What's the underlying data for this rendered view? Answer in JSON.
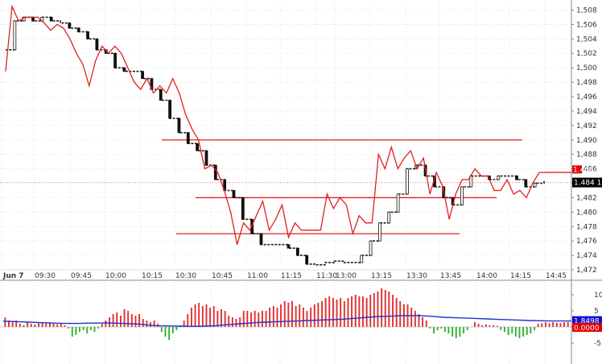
{
  "chart_data": [
    {
      "type": "candlestick-line",
      "price_axis": {
        "ylim": [
          1.471,
          1.5085
        ],
        "ticks": [
          1.472,
          1.474,
          1.476,
          1.478,
          1.48,
          1.482,
          1.484,
          1.486,
          1.488,
          1.49,
          1.492,
          1.494,
          1.496,
          1.498,
          1.5,
          1.502,
          1.504,
          1.506,
          1.508
        ],
        "tick_labels": [
          "1,472",
          "1,474",
          "1,476",
          "1,478",
          "1,480",
          "1,482",
          "1,484",
          "1,486",
          "1,488",
          "1,490",
          "1,492",
          "1,494",
          "1,496",
          "1,498",
          "1,500",
          "1,502",
          "1,504",
          "1,506",
          "1,508"
        ]
      },
      "x_labels": [
        "Jun 7",
        "09:30",
        "09:45",
        "10:00",
        "10:15",
        "10:30",
        "10:45",
        "11:00",
        "11:15",
        "11:30",
        "13:00",
        "13:15",
        "13:30",
        "13:45",
        "14:00",
        "14:15",
        "14:45"
      ],
      "horizontal_levels": [
        {
          "price": 1.49,
          "from": "10:15",
          "to": "14:15"
        },
        {
          "price": 1.482,
          "from": "10:30",
          "to": "14:00"
        },
        {
          "price": 1.477,
          "from": "10:30",
          "to": "13:45"
        }
      ],
      "last_price_label": "1.484 1",
      "current_marker_label": "1.486",
      "red_line": [
        1.4995,
        1.5085,
        1.5065,
        1.507,
        1.507,
        1.507,
        1.5062,
        1.5052,
        1.506,
        1.5055,
        1.504,
        1.502,
        1.5005,
        1.4975,
        1.501,
        1.503,
        1.502,
        1.503,
        1.502,
        1.5,
        1.498,
        1.497,
        1.4985,
        1.4965,
        1.4975,
        1.4965,
        1.4985,
        1.4965,
        1.4935,
        1.4915,
        1.49,
        1.486,
        1.4865,
        1.4855,
        1.483,
        1.48,
        1.4755,
        1.4785,
        1.4775,
        1.4795,
        1.4815,
        1.4775,
        1.479,
        1.481,
        1.4765,
        1.4785,
        1.4775,
        1.4775,
        1.4775,
        1.4775,
        1.4825,
        1.4805,
        1.482,
        1.481,
        1.477,
        1.4795,
        1.4785,
        1.4785,
        1.488,
        1.486,
        1.489,
        1.486,
        1.4875,
        1.4885,
        1.486,
        1.4875,
        1.4825,
        1.4855,
        1.4835,
        1.479,
        1.4825,
        1.4845,
        1.4845,
        1.486,
        1.485,
        1.485,
        1.483,
        1.483,
        1.4845,
        1.4825,
        1.483,
        1.482,
        1.484,
        1.4855,
        1.4855
      ],
      "black_line": [
        1.5025,
        1.5065,
        1.507,
        1.5065,
        1.507,
        1.5065,
        1.5062,
        1.5055,
        1.505,
        1.504,
        1.5025,
        1.502,
        1.5,
        1.4995,
        1.4995,
        1.4985,
        1.497,
        1.4955,
        1.493,
        1.491,
        1.4895,
        1.4885,
        1.4865,
        1.4845,
        1.483,
        1.482,
        1.479,
        1.477,
        1.4755,
        1.4755,
        1.4755,
        1.475,
        1.474,
        1.4728,
        1.4727,
        1.473,
        1.4732,
        1.473,
        1.473,
        1.474,
        1.476,
        1.4785,
        1.48,
        1.4825,
        1.486,
        1.4865,
        1.485,
        1.4835,
        1.482,
        1.481,
        1.4835,
        1.485,
        1.485,
        1.4845,
        1.485,
        1.485,
        1.4845,
        1.4835,
        1.484,
        1.4843
      ]
    },
    {
      "type": "bar",
      "ylim": [
        -6,
        13
      ],
      "ticks": [
        -5,
        0,
        5,
        10
      ],
      "tick_labels": [
        "-5",
        "0",
        "5",
        "10"
      ],
      "last_value_label": "1.8498",
      "bottom_label": "0.0000",
      "values": [
        3,
        2,
        1.5,
        2,
        1,
        0.5,
        1.5,
        1,
        0.8,
        1.2,
        1.5,
        1.3,
        1.5,
        1,
        0.8,
        1,
        0.5,
        -0.5,
        -3,
        -2.5,
        -1.5,
        -1,
        -2,
        -1,
        -1.5,
        -0.5,
        1,
        2,
        3,
        4,
        4.5,
        3.5,
        5.5,
        5,
        4,
        3.5,
        4,
        2.5,
        2,
        1.5,
        2,
        1,
        -1.5,
        -3,
        -4,
        -2,
        -1,
        0.5,
        2,
        4,
        6,
        7,
        7.5,
        6.5,
        7,
        6,
        6.5,
        5,
        5.5,
        5,
        3.5,
        3,
        2.5,
        3,
        5,
        5,
        4.5,
        5,
        4.5,
        5,
        5,
        6,
        6.5,
        6,
        7,
        8,
        7.5,
        8,
        6.5,
        7,
        6,
        5,
        6,
        7,
        7.5,
        8,
        9,
        9.5,
        9,
        8.5,
        9,
        8,
        9,
        9.5,
        10,
        9.5,
        9.5,
        9,
        10,
        10.5,
        11,
        12,
        11.5,
        11,
        10,
        9,
        8,
        7,
        7,
        6,
        5,
        4,
        3,
        2,
        -0.5,
        -2,
        -1,
        -0.5,
        -1.5,
        -2,
        -3,
        -3.5,
        -3,
        -2,
        -1,
        0,
        1.5,
        1,
        0.5,
        0.8,
        0.5,
        0.5,
        0.3,
        -1,
        -1.5,
        -2.5,
        -2,
        -3,
        -3.5,
        -3,
        -2.5,
        -2,
        -1,
        1,
        1.2,
        1.5,
        1.2,
        1.5,
        1.3,
        1.2,
        1.5,
        1.5
      ],
      "ma_line": [
        1.8,
        1.7,
        1.6,
        1.5,
        1.4,
        1.3,
        1.2,
        1.1,
        1.1,
        1.1,
        1.2,
        1.2,
        1.25,
        1.2,
        1.1,
        1.0,
        0.9,
        0.6,
        0.4,
        0.35,
        0.3,
        0.25,
        0.2,
        0.2,
        0.3,
        0.4,
        0.6,
        0.8,
        1.0,
        1.2,
        1.4,
        1.5,
        1.6,
        1.7,
        1.8,
        1.9,
        2.0,
        2.1,
        2.2,
        2.3,
        2.4,
        2.6,
        2.8,
        3.0,
        3.2,
        3.3,
        3.4,
        3.5,
        3.5,
        3.5,
        3.4,
        3.2,
        3.0,
        2.9,
        2.8,
        2.7,
        2.6,
        2.5,
        2.4,
        2.3,
        2.2,
        2.1,
        2.0,
        1.95,
        1.9,
        1.85,
        1.85,
        1.85
      ]
    }
  ]
}
